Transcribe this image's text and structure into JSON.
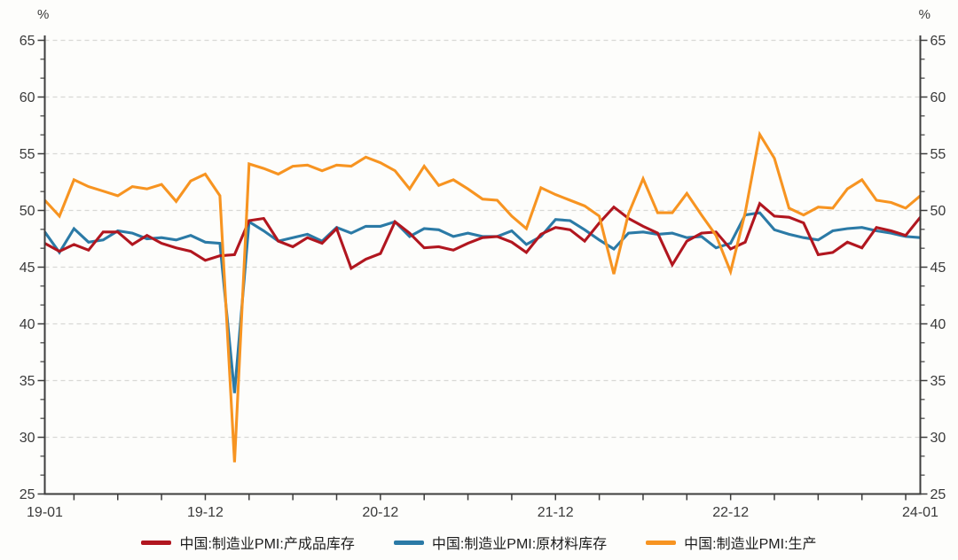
{
  "colors": {
    "background": "#fdfdfb",
    "axis": "#3d3d3d",
    "grid": "#d8d8d5",
    "text": "#3a3a3a",
    "series_red": "#b1161f",
    "series_blue": "#2b7aa6",
    "series_orange": "#f79421"
  },
  "chart_data": {
    "type": "line",
    "title": "",
    "unit_left": "%",
    "unit_right": "%",
    "grid": "horizontal-dashed",
    "legend_position": "bottom",
    "x_start": "2019-01",
    "x_end": "2024-01",
    "x_count": 61,
    "x_tick_every_months": 3,
    "x_tick_start_index": 2,
    "ylim": [
      25,
      65
    ],
    "y_step": 5,
    "y_minor_divisions": 3,
    "y_tick_labels": [
      "25",
      "30",
      "35",
      "40",
      "45",
      "50",
      "55",
      "60",
      "65"
    ],
    "x_tick_labels": [
      {
        "index": 0,
        "label": "19-01"
      },
      {
        "index": 11,
        "label": "19-12"
      },
      {
        "index": 23,
        "label": "20-12"
      },
      {
        "index": 35,
        "label": "21-12"
      },
      {
        "index": 47,
        "label": "22-12"
      },
      {
        "index": 60,
        "label": "24-01"
      }
    ],
    "draw_order": [
      1,
      0,
      2
    ],
    "series": [
      {
        "name": "中国:制造业PMI:产成品库存",
        "key": "finished-goods-inventory",
        "color": "#b1161f",
        "values": [
          47.1,
          46.4,
          47.0,
          46.5,
          48.1,
          48.1,
          47.0,
          47.8,
          47.1,
          46.7,
          46.4,
          45.6,
          46.0,
          46.1,
          49.1,
          49.3,
          47.3,
          46.8,
          47.6,
          47.1,
          48.4,
          44.9,
          45.7,
          46.2,
          49.0,
          48.0,
          46.7,
          46.8,
          46.5,
          47.1,
          47.6,
          47.7,
          47.2,
          46.3,
          47.9,
          48.5,
          48.3,
          47.3,
          48.9,
          50.3,
          49.3,
          48.6,
          48.0,
          45.2,
          47.3,
          48.0,
          48.1,
          46.6,
          47.2,
          50.6,
          49.5,
          49.4,
          48.9,
          46.1,
          46.3,
          47.2,
          46.7,
          48.5,
          48.2,
          47.8,
          49.4
        ]
      },
      {
        "name": "中国:制造业PMI:原材料库存",
        "key": "raw-materials-inventory",
        "color": "#2b7aa6",
        "values": [
          48.1,
          46.3,
          48.4,
          47.2,
          47.4,
          48.2,
          48.0,
          47.5,
          47.6,
          47.4,
          47.8,
          47.2,
          47.1,
          33.9,
          49.0,
          48.2,
          47.3,
          47.6,
          47.9,
          47.3,
          48.5,
          48.0,
          48.6,
          48.6,
          49.0,
          47.7,
          48.4,
          48.3,
          47.7,
          48.0,
          47.7,
          47.7,
          48.2,
          47.0,
          47.7,
          49.2,
          49.1,
          48.3,
          47.4,
          46.6,
          48.0,
          48.1,
          47.9,
          48.0,
          47.6,
          47.7,
          46.7,
          47.1,
          49.6,
          49.8,
          48.3,
          47.9,
          47.6,
          47.4,
          48.2,
          48.4,
          48.5,
          48.2,
          48.0,
          47.7,
          47.6
        ]
      },
      {
        "name": "中国:制造业PMI:生产",
        "key": "production",
        "color": "#f79421",
        "values": [
          50.9,
          49.5,
          52.7,
          52.1,
          51.7,
          51.3,
          52.1,
          51.9,
          52.3,
          50.8,
          52.6,
          53.2,
          51.3,
          27.8,
          54.1,
          53.7,
          53.2,
          53.9,
          54.0,
          53.5,
          54.0,
          53.9,
          54.7,
          54.2,
          53.5,
          51.9,
          53.9,
          52.2,
          52.7,
          51.9,
          51.0,
          50.9,
          49.5,
          48.4,
          52.0,
          51.4,
          50.9,
          50.4,
          49.5,
          44.4,
          49.7,
          52.8,
          49.8,
          49.8,
          51.5,
          49.6,
          47.8,
          44.6,
          49.8,
          56.7,
          54.6,
          50.2,
          49.6,
          50.3,
          50.2,
          51.9,
          52.7,
          50.9,
          50.7,
          50.2,
          51.3
        ]
      }
    ]
  }
}
